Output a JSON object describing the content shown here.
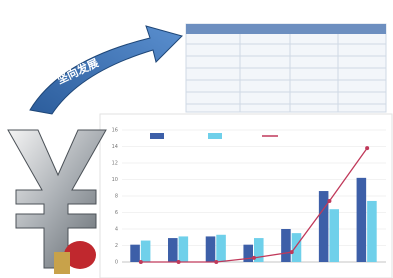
{
  "arrow_text": "坚向发展",
  "chart_data": {
    "type": "bar",
    "categories": [
      null,
      null,
      null,
      null,
      null,
      null,
      null
    ],
    "series": [
      {
        "color": "#3d5fa8",
        "values": [
          2.1,
          2.9,
          3.1,
          2.1,
          4.0,
          8.6,
          10.2
        ]
      },
      {
        "color": "#6fd0ea",
        "values": [
          2.6,
          3.1,
          3.3,
          2.9,
          3.5,
          6.4,
          7.4
        ]
      },
      {
        "color": "#c0395a",
        "line": true,
        "values": [
          0,
          0,
          0,
          0.5,
          1.2,
          7.4,
          13.8
        ]
      }
    ],
    "ylim": [
      0,
      16
    ],
    "yticks": [
      0,
      2,
      4,
      6,
      8,
      10,
      12,
      14,
      16
    ],
    "grid": true
  }
}
